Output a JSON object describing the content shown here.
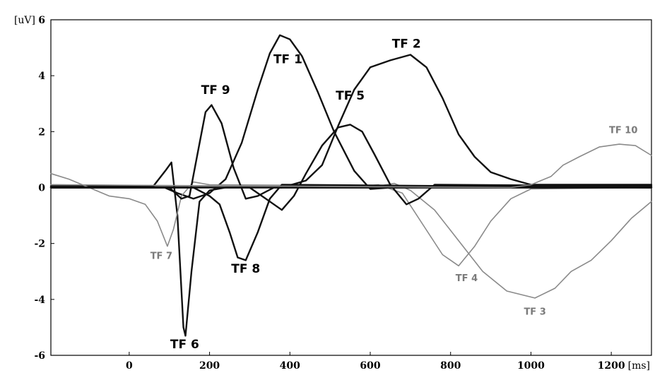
{
  "chart_data": {
    "type": "line",
    "title": "",
    "xunit": "[ms]",
    "yunit": "[uV]",
    "xlim": [
      -195,
      1300
    ],
    "ylim": [
      -6,
      6
    ],
    "xticks": [
      0,
      200,
      400,
      600,
      800,
      1000,
      1200
    ],
    "yticks": [
      6,
      4,
      2,
      0,
      -2,
      -4,
      -6
    ],
    "grid": false,
    "series": [
      {
        "name": "TF 1",
        "color": "#111111",
        "points": [
          [
            -195,
            0
          ],
          [
            80,
            0.05
          ],
          [
            120,
            -0.2
          ],
          [
            160,
            -0.4
          ],
          [
            200,
            -0.2
          ],
          [
            240,
            0.3
          ],
          [
            280,
            1.6
          ],
          [
            320,
            3.5
          ],
          [
            350,
            4.8
          ],
          [
            375,
            5.45
          ],
          [
            400,
            5.3
          ],
          [
            430,
            4.7
          ],
          [
            470,
            3.4
          ],
          [
            510,
            2.0
          ],
          [
            560,
            0.6
          ],
          [
            600,
            -0.05
          ],
          [
            650,
            0
          ],
          [
            1300,
            0.05
          ]
        ]
      },
      {
        "name": "TF 2",
        "color": "#111111",
        "points": [
          [
            -195,
            0.05
          ],
          [
            200,
            0.05
          ],
          [
            380,
            0
          ],
          [
            440,
            0.25
          ],
          [
            480,
            0.8
          ],
          [
            520,
            2.2
          ],
          [
            560,
            3.5
          ],
          [
            600,
            4.3
          ],
          [
            650,
            4.55
          ],
          [
            700,
            4.75
          ],
          [
            740,
            4.3
          ],
          [
            780,
            3.2
          ],
          [
            820,
            1.9
          ],
          [
            860,
            1.1
          ],
          [
            900,
            0.55
          ],
          [
            950,
            0.3
          ],
          [
            1000,
            0.1
          ],
          [
            1300,
            0.1
          ]
        ]
      },
      {
        "name": "TF 3",
        "color": "#8a8a8a",
        "points": [
          [
            -195,
            0.1
          ],
          [
            600,
            0
          ],
          [
            660,
            0.15
          ],
          [
            700,
            -0.1
          ],
          [
            760,
            -0.8
          ],
          [
            820,
            -1.9
          ],
          [
            880,
            -3.0
          ],
          [
            940,
            -3.7
          ],
          [
            1010,
            -3.95
          ],
          [
            1060,
            -3.6
          ],
          [
            1100,
            -3.0
          ],
          [
            1150,
            -2.6
          ],
          [
            1200,
            -1.9
          ],
          [
            1250,
            -1.1
          ],
          [
            1300,
            -0.5
          ]
        ]
      },
      {
        "name": "TF 4",
        "color": "#8a8a8a",
        "points": [
          [
            -195,
            0.1
          ],
          [
            550,
            0
          ],
          [
            620,
            0.1
          ],
          [
            680,
            -0.2
          ],
          [
            730,
            -1.3
          ],
          [
            780,
            -2.4
          ],
          [
            820,
            -2.8
          ],
          [
            860,
            -2.1
          ],
          [
            900,
            -1.2
          ],
          [
            950,
            -0.4
          ],
          [
            1000,
            -0.05
          ],
          [
            1300,
            0
          ]
        ]
      },
      {
        "name": "TF 5",
        "color": "#111111",
        "points": [
          [
            -195,
            0
          ],
          [
            300,
            0
          ],
          [
            350,
            -0.5
          ],
          [
            380,
            -0.8
          ],
          [
            410,
            -0.3
          ],
          [
            440,
            0.5
          ],
          [
            480,
            1.5
          ],
          [
            520,
            2.15
          ],
          [
            550,
            2.25
          ],
          [
            580,
            2.0
          ],
          [
            610,
            1.2
          ],
          [
            650,
            0.1
          ],
          [
            690,
            -0.6
          ],
          [
            720,
            -0.4
          ],
          [
            760,
            0.1
          ],
          [
            1300,
            0.05
          ]
        ]
      },
      {
        "name": "TF 6",
        "color": "#111111",
        "points": [
          [
            -195,
            0.05
          ],
          [
            60,
            0.05
          ],
          [
            90,
            0.6
          ],
          [
            105,
            0.9
          ],
          [
            120,
            -1.0
          ],
          [
            135,
            -5.0
          ],
          [
            140,
            -5.3
          ],
          [
            155,
            -3.0
          ],
          [
            175,
            -0.5
          ],
          [
            200,
            -0.1
          ],
          [
            240,
            0
          ],
          [
            1300,
            0
          ]
        ]
      },
      {
        "name": "TF 7",
        "color": "#8a8a8a",
        "points": [
          [
            -195,
            0.5
          ],
          [
            -150,
            0.3
          ],
          [
            -100,
            0
          ],
          [
            -50,
            -0.3
          ],
          [
            0,
            -0.4
          ],
          [
            40,
            -0.6
          ],
          [
            70,
            -1.2
          ],
          [
            95,
            -2.1
          ],
          [
            110,
            -1.5
          ],
          [
            130,
            -0.3
          ],
          [
            160,
            0.2
          ],
          [
            200,
            0.1
          ],
          [
            1300,
            0
          ]
        ]
      },
      {
        "name": "TF 8",
        "color": "#111111",
        "points": [
          [
            -195,
            0
          ],
          [
            160,
            0
          ],
          [
            200,
            -0.3
          ],
          [
            225,
            -0.6
          ],
          [
            250,
            -1.6
          ],
          [
            270,
            -2.5
          ],
          [
            290,
            -2.6
          ],
          [
            320,
            -1.6
          ],
          [
            350,
            -0.4
          ],
          [
            380,
            0.1
          ],
          [
            1300,
            0
          ]
        ]
      },
      {
        "name": "TF 9",
        "color": "#111111",
        "points": [
          [
            -195,
            0
          ],
          [
            100,
            0
          ],
          [
            130,
            -0.4
          ],
          [
            150,
            -0.3
          ],
          [
            170,
            1.2
          ],
          [
            190,
            2.7
          ],
          [
            205,
            2.95
          ],
          [
            230,
            2.3
          ],
          [
            260,
            0.7
          ],
          [
            290,
            -0.4
          ],
          [
            320,
            -0.3
          ],
          [
            360,
            0
          ],
          [
            1300,
            0
          ]
        ]
      },
      {
        "name": "TF 10",
        "color": "#8a8a8a",
        "points": [
          [
            -195,
            0.1
          ],
          [
            950,
            0
          ],
          [
            1000,
            0.1
          ],
          [
            1050,
            0.4
          ],
          [
            1080,
            0.8
          ],
          [
            1120,
            1.1
          ],
          [
            1170,
            1.45
          ],
          [
            1220,
            1.55
          ],
          [
            1260,
            1.5
          ],
          [
            1300,
            1.15
          ]
        ]
      }
    ],
    "labels": [
      {
        "text": "TF 1",
        "x": 395,
        "y": 4.45,
        "style": "dark"
      },
      {
        "text": "TF 2",
        "x": 690,
        "y": 5.0,
        "style": "dark"
      },
      {
        "text": "TF 3",
        "x": 1010,
        "y": -4.55,
        "style": "grey"
      },
      {
        "text": "TF 4",
        "x": 840,
        "y": -3.35,
        "style": "grey"
      },
      {
        "text": "TF 5",
        "x": 550,
        "y": 3.15,
        "style": "dark"
      },
      {
        "text": "TF 6",
        "x": 138,
        "y": -5.75,
        "style": "dark"
      },
      {
        "text": "TF 7",
        "x": 80,
        "y": -2.55,
        "style": "grey"
      },
      {
        "text": "TF 8",
        "x": 290,
        "y": -3.05,
        "style": "dark"
      },
      {
        "text": "TF 9",
        "x": 215,
        "y": 3.35,
        "style": "dark"
      },
      {
        "text": "TF 10",
        "x": 1230,
        "y": 1.95,
        "style": "grey"
      }
    ]
  }
}
